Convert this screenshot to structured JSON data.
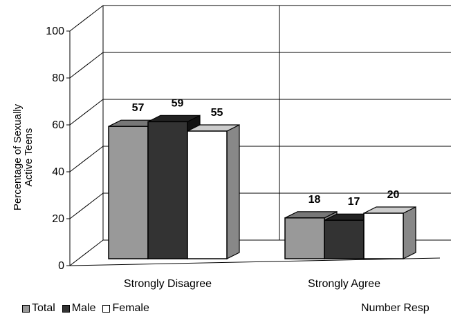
{
  "chart_data": {
    "type": "bar",
    "style": "3d",
    "ylabel": "Percentage of Sexually Active Teens",
    "ylabel_lines": [
      "Percentage of Sexually",
      "Active Teens"
    ],
    "ylim": [
      0,
      100
    ],
    "yticks": [
      0,
      20,
      40,
      60,
      80,
      100
    ],
    "grid": true,
    "legend_position": "bottom-left",
    "categories": [
      "Strongly Disagree",
      "Strongly Agree"
    ],
    "series": [
      {
        "name": "Total",
        "values": [
          57,
          18
        ],
        "color": "#999999"
      },
      {
        "name": "Male",
        "values": [
          59,
          17
        ],
        "color": "#333333"
      },
      {
        "name": "Female",
        "values": [
          55,
          20
        ],
        "color": "#ffffff"
      }
    ]
  },
  "footer_note": "Number Resp"
}
